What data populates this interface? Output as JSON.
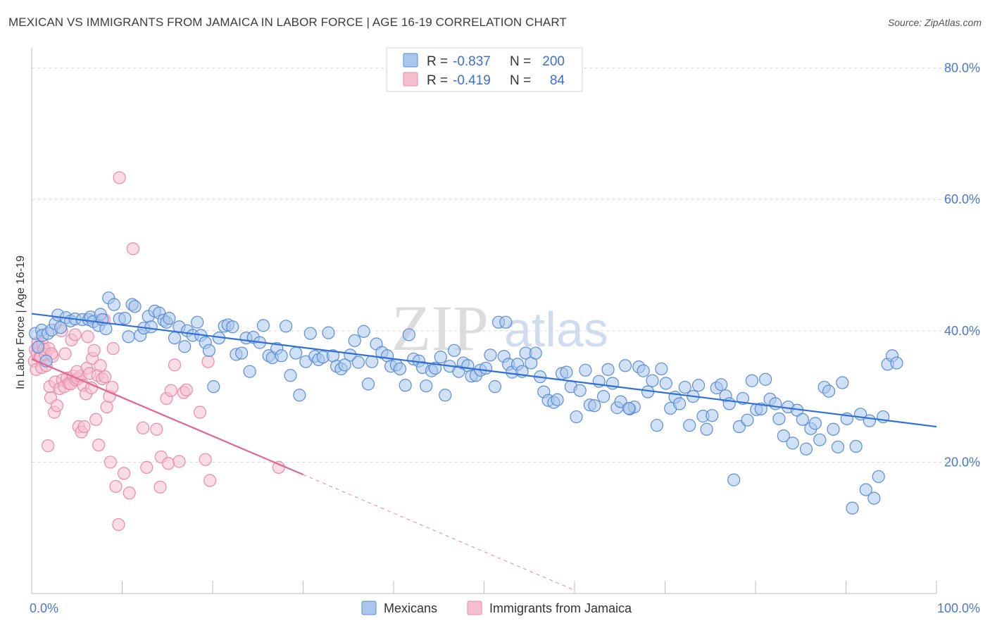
{
  "title": "MEXICAN VS IMMIGRANTS FROM JAMAICA IN LABOR FORCE | AGE 16-19 CORRELATION CHART",
  "source": "Source: ZipAtlas.com",
  "watermark": {
    "zip": "ZIP",
    "atlas": "atlas"
  },
  "colors": {
    "blue_fill": "#a9c6ec",
    "blue_stroke": "#5b8dd6",
    "blue_line": "#2f6fd6",
    "pink_fill": "#f6bfd0",
    "pink_stroke": "#e98aa9",
    "pink_line": "#e0668f",
    "grid": "#d8d8d8",
    "axis_text": "#4a78c9"
  },
  "chart_data": {
    "type": "scatter",
    "title": "MEXICAN VS IMMIGRANTS FROM JAMAICA IN LABOR FORCE | AGE 16-19 CORRELATION CHART",
    "xlabel": "",
    "ylabel": "In Labor Force | Age 16-19",
    "xlim": [
      0,
      100
    ],
    "ylim": [
      0,
      82
    ],
    "x_ticks": [
      "0.0%",
      "100.0%"
    ],
    "y_ticks": [
      {
        "value": 20,
        "label": "20.0%"
      },
      {
        "value": 40,
        "label": "40.0%"
      },
      {
        "value": 60,
        "label": "60.0%"
      },
      {
        "value": 80,
        "label": "80.0%"
      }
    ],
    "grid": "horizontal dashed",
    "legend": {
      "placement": "top-center",
      "rows": [
        {
          "r_label": "R =",
          "r_value": "-0.837",
          "n_label": "N =",
          "n_value": "200"
        },
        {
          "r_label": "R =",
          "r_value": "-0.419",
          "n_label": "N =",
          "n_value": "84"
        }
      ]
    },
    "bottom_legend": [
      "Mexicans",
      "Immigrants from Jamaica"
    ],
    "series": [
      {
        "name": "Mexicans",
        "color": "#a9c6ec",
        "trendline": {
          "x": [
            0,
            100
          ],
          "y": [
            42.6,
            25.4
          ],
          "style": "solid"
        },
        "points": [
          [
            0.4,
            39.6
          ],
          [
            0.7,
            37.5
          ],
          [
            1.1,
            40.1
          ],
          [
            1.2,
            39.3
          ],
          [
            1.6,
            35.4
          ],
          [
            1.8,
            39.6
          ],
          [
            2.2,
            40.1
          ],
          [
            2.6,
            41.1
          ],
          [
            2.9,
            42.4
          ],
          [
            3.2,
            40.5
          ],
          [
            3.8,
            42.0
          ],
          [
            4.3,
            41.5
          ],
          [
            4.8,
            41.8
          ],
          [
            5.6,
            41.7
          ],
          [
            6.3,
            41.7
          ],
          [
            6.5,
            42.1
          ],
          [
            6.8,
            41.4
          ],
          [
            7.4,
            40.8
          ],
          [
            7.6,
            42.5
          ],
          [
            7.8,
            41.7
          ],
          [
            8.2,
            40.3
          ],
          [
            8.5,
            45.0
          ],
          [
            9.1,
            44.0
          ],
          [
            9.7,
            41.8
          ],
          [
            10.3,
            41.9
          ],
          [
            10.7,
            39.1
          ],
          [
            11.1,
            44.0
          ],
          [
            11.4,
            43.7
          ],
          [
            12.0,
            39.3
          ],
          [
            12.4,
            40.4
          ],
          [
            12.9,
            42.2
          ],
          [
            13.2,
            40.6
          ],
          [
            13.6,
            43.0
          ],
          [
            14.1,
            42.7
          ],
          [
            14.6,
            41.6
          ],
          [
            14.9,
            41.3
          ],
          [
            15.2,
            41.9
          ],
          [
            15.8,
            38.9
          ],
          [
            16.3,
            40.6
          ],
          [
            16.9,
            37.6
          ],
          [
            17.2,
            40.0
          ],
          [
            17.8,
            39.3
          ],
          [
            18.3,
            41.3
          ],
          [
            18.7,
            39.3
          ],
          [
            19.2,
            38.2
          ],
          [
            19.6,
            37.0
          ],
          [
            20.1,
            31.5
          ],
          [
            20.7,
            38.9
          ],
          [
            21.3,
            40.7
          ],
          [
            21.7,
            40.9
          ],
          [
            22.2,
            40.6
          ],
          [
            22.6,
            36.4
          ],
          [
            23.2,
            36.6
          ],
          [
            23.7,
            38.9
          ],
          [
            24.1,
            33.8
          ],
          [
            24.5,
            39.0
          ],
          [
            25.2,
            38.2
          ],
          [
            25.6,
            40.8
          ],
          [
            26.2,
            36.2
          ],
          [
            26.6,
            35.9
          ],
          [
            27.1,
            37.3
          ],
          [
            27.6,
            36.2
          ],
          [
            28.1,
            40.7
          ],
          [
            28.6,
            33.2
          ],
          [
            29.2,
            36.6
          ],
          [
            29.6,
            30.2
          ],
          [
            30.3,
            35.3
          ],
          [
            30.8,
            39.6
          ],
          [
            31.3,
            36.1
          ],
          [
            31.7,
            35.6
          ],
          [
            32.2,
            36.0
          ],
          [
            32.8,
            39.7
          ],
          [
            33.3,
            36.2
          ],
          [
            33.7,
            34.6
          ],
          [
            34.2,
            34.2
          ],
          [
            34.6,
            34.8
          ],
          [
            35.2,
            36.3
          ],
          [
            35.7,
            38.5
          ],
          [
            36.1,
            35.2
          ],
          [
            36.7,
            39.9
          ],
          [
            37.2,
            31.9
          ],
          [
            37.6,
            35.3
          ],
          [
            38.1,
            38.0
          ],
          [
            38.7,
            36.7
          ],
          [
            39.3,
            36.2
          ],
          [
            39.7,
            34.6
          ],
          [
            40.3,
            34.8
          ],
          [
            40.7,
            34.2
          ],
          [
            41.3,
            31.7
          ],
          [
            41.7,
            39.4
          ],
          [
            42.2,
            35.7
          ],
          [
            42.8,
            35.4
          ],
          [
            43.2,
            34.4
          ],
          [
            43.6,
            31.6
          ],
          [
            44.2,
            33.9
          ],
          [
            44.6,
            34.3
          ],
          [
            45.2,
            36.0
          ],
          [
            45.7,
            30.2
          ],
          [
            46.2,
            34.6
          ],
          [
            46.7,
            37.0
          ],
          [
            47.2,
            33.8
          ],
          [
            47.7,
            35.1
          ],
          [
            48.2,
            34.7
          ],
          [
            48.6,
            33.1
          ],
          [
            49.1,
            33.2
          ],
          [
            49.6,
            34.0
          ],
          [
            50.2,
            34.3
          ],
          [
            50.7,
            36.3
          ],
          [
            51.2,
            31.5
          ],
          [
            51.6,
            41.3
          ],
          [
            52.2,
            36.1
          ],
          [
            52.7,
            34.9
          ],
          [
            53.1,
            33.7
          ],
          [
            53.7,
            34.9
          ],
          [
            54.2,
            33.8
          ],
          [
            54.6,
            36.6
          ],
          [
            55.2,
            35.1
          ],
          [
            55.7,
            36.6
          ],
          [
            56.2,
            33.0
          ],
          [
            56.6,
            30.7
          ],
          [
            57.1,
            29.4
          ],
          [
            57.7,
            29.1
          ],
          [
            58.1,
            29.5
          ],
          [
            58.6,
            33.5
          ],
          [
            59.1,
            33.7
          ],
          [
            59.6,
            31.5
          ],
          [
            60.2,
            26.9
          ],
          [
            60.6,
            30.9
          ],
          [
            61.2,
            34.0
          ],
          [
            61.7,
            28.7
          ],
          [
            62.2,
            28.6
          ],
          [
            62.7,
            32.3
          ],
          [
            63.2,
            30.0
          ],
          [
            63.7,
            34.1
          ],
          [
            64.2,
            32.0
          ],
          [
            64.7,
            28.3
          ],
          [
            65.1,
            29.2
          ],
          [
            65.6,
            34.7
          ],
          [
            66.1,
            28.1
          ],
          [
            66.6,
            28.4
          ],
          [
            67.1,
            34.5
          ],
          [
            67.6,
            33.9
          ],
          [
            68.1,
            30.7
          ],
          [
            68.6,
            32.4
          ],
          [
            69.1,
            25.6
          ],
          [
            69.6,
            34.2
          ],
          [
            70.1,
            32.0
          ],
          [
            70.6,
            28.2
          ],
          [
            71.1,
            29.9
          ],
          [
            71.6,
            28.9
          ],
          [
            72.2,
            31.4
          ],
          [
            72.7,
            25.6
          ],
          [
            73.1,
            30.0
          ],
          [
            73.7,
            31.7
          ],
          [
            74.2,
            27.0
          ],
          [
            74.6,
            25.0
          ],
          [
            75.2,
            27.1
          ],
          [
            75.7,
            31.3
          ],
          [
            76.2,
            31.8
          ],
          [
            76.7,
            30.1
          ],
          [
            77.1,
            28.9
          ],
          [
            77.6,
            17.3
          ],
          [
            78.2,
            25.4
          ],
          [
            78.6,
            29.7
          ],
          [
            79.1,
            26.4
          ],
          [
            79.6,
            32.4
          ],
          [
            80.1,
            28.0
          ],
          [
            80.6,
            28.1
          ],
          [
            81.1,
            32.6
          ],
          [
            81.6,
            29.6
          ],
          [
            82.2,
            28.9
          ],
          [
            82.6,
            26.6
          ],
          [
            83.1,
            24.0
          ],
          [
            83.6,
            28.4
          ],
          [
            84.1,
            22.9
          ],
          [
            84.6,
            27.9
          ],
          [
            85.2,
            26.5
          ],
          [
            85.6,
            22.0
          ],
          [
            86.1,
            25.1
          ],
          [
            86.6,
            25.9
          ],
          [
            87.1,
            23.4
          ],
          [
            87.6,
            31.4
          ],
          [
            88.1,
            30.8
          ],
          [
            88.6,
            25.0
          ],
          [
            89.1,
            22.3
          ],
          [
            89.6,
            32.1
          ],
          [
            90.1,
            26.6
          ],
          [
            90.7,
            13.0
          ],
          [
            91.1,
            22.4
          ],
          [
            91.6,
            27.3
          ],
          [
            92.2,
            15.8
          ],
          [
            92.6,
            26.3
          ],
          [
            93.1,
            14.5
          ],
          [
            93.6,
            17.8
          ],
          [
            94.1,
            26.9
          ],
          [
            94.6,
            34.9
          ],
          [
            95.1,
            36.2
          ],
          [
            95.6,
            35.1
          ],
          [
            52.4,
            41.3
          ],
          [
            66.0,
            28.2
          ]
        ]
      },
      {
        "name": "Immigrants from Jamaica",
        "color": "#f6bfd0",
        "trendline": {
          "x": [
            0,
            30
          ],
          "y": [
            35.7,
            18.1
          ],
          "style": "solid",
          "dashed_extension_to_x": 60
        },
        "points": [
          [
            0.3,
            35.4
          ],
          [
            0.4,
            37.1
          ],
          [
            0.5,
            34.1
          ],
          [
            0.6,
            36.5
          ],
          [
            0.7,
            38.2
          ],
          [
            0.8,
            37.6
          ],
          [
            0.9,
            36.0
          ],
          [
            1.0,
            35.9
          ],
          [
            1.1,
            34.4
          ],
          [
            1.2,
            38.0
          ],
          [
            1.3,
            37.2
          ],
          [
            1.4,
            37.2
          ],
          [
            1.5,
            36.4
          ],
          [
            1.6,
            34.7
          ],
          [
            1.8,
            22.5
          ],
          [
            1.9,
            37.3
          ],
          [
            2.0,
            31.5
          ],
          [
            2.1,
            29.8
          ],
          [
            2.3,
            36.1
          ],
          [
            2.5,
            27.6
          ],
          [
            2.6,
            32.2
          ],
          [
            2.8,
            28.6
          ],
          [
            3.1,
            31.2
          ],
          [
            3.3,
            40.0
          ],
          [
            3.4,
            32.5
          ],
          [
            3.6,
            31.5
          ],
          [
            3.7,
            36.5
          ],
          [
            3.9,
            32.8
          ],
          [
            4.1,
            32.0
          ],
          [
            4.3,
            31.9
          ],
          [
            4.4,
            38.6
          ],
          [
            4.6,
            33.1
          ],
          [
            4.8,
            39.4
          ],
          [
            4.9,
            32.5
          ],
          [
            5.1,
            32.7
          ],
          [
            5.2,
            25.4
          ],
          [
            5.4,
            33.1
          ],
          [
            5.5,
            24.6
          ],
          [
            5.7,
            31.7
          ],
          [
            5.8,
            25.4
          ],
          [
            6.0,
            30.4
          ],
          [
            6.1,
            34.3
          ],
          [
            6.2,
            39.1
          ],
          [
            6.4,
            33.5
          ],
          [
            6.6,
            31.3
          ],
          [
            6.7,
            35.8
          ],
          [
            6.9,
            37.0
          ],
          [
            7.1,
            26.5
          ],
          [
            7.3,
            33.2
          ],
          [
            7.4,
            22.6
          ],
          [
            7.6,
            34.7
          ],
          [
            7.8,
            32.7
          ],
          [
            8.0,
            41.7
          ],
          [
            8.1,
            33.0
          ],
          [
            8.3,
            28.4
          ],
          [
            8.6,
            30.0
          ],
          [
            8.7,
            20.0
          ],
          [
            8.9,
            31.4
          ],
          [
            9.0,
            37.3
          ],
          [
            9.3,
            16.3
          ],
          [
            9.6,
            10.5
          ],
          [
            9.7,
            63.3
          ],
          [
            10.2,
            18.3
          ],
          [
            10.8,
            15.3
          ],
          [
            11.2,
            52.5
          ],
          [
            12.3,
            25.2
          ],
          [
            12.7,
            19.2
          ],
          [
            13.8,
            25.0
          ],
          [
            14.2,
            16.2
          ],
          [
            14.3,
            20.8
          ],
          [
            14.9,
            29.7
          ],
          [
            15.1,
            19.8
          ],
          [
            15.4,
            30.9
          ],
          [
            15.8,
            34.8
          ],
          [
            16.3,
            20.1
          ],
          [
            16.8,
            30.6
          ],
          [
            17.1,
            31.0
          ],
          [
            18.6,
            27.6
          ],
          [
            19.2,
            20.4
          ],
          [
            19.5,
            35.3
          ],
          [
            19.7,
            17.2
          ],
          [
            5.0,
            33.8
          ],
          [
            27.3,
            19.2
          ],
          [
            2.2,
            36.5
          ]
        ]
      }
    ]
  }
}
